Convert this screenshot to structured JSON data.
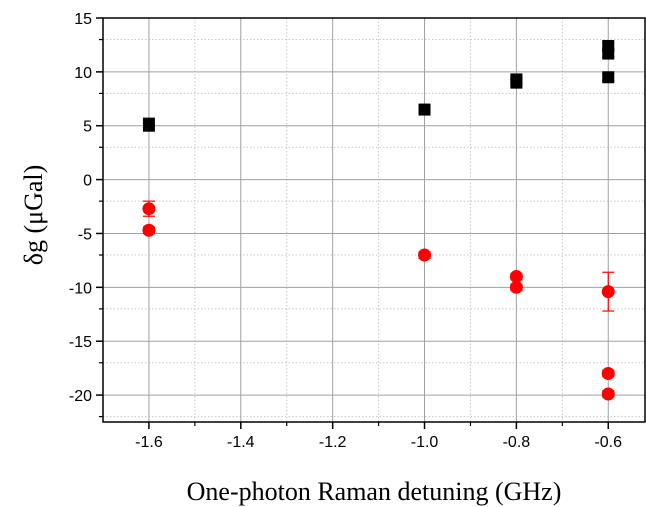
{
  "chart_data": {
    "type": "scatter",
    "xlabel": "One-photon Raman detuning (GHz)",
    "ylabel": "δg (μGal)",
    "xlim": [
      -1.7,
      -0.52
    ],
    "ylim": [
      -22.5,
      15
    ],
    "x_ticks": [
      -1.6,
      -1.4,
      -1.2,
      -1.0,
      -0.8,
      -0.6
    ],
    "x_tick_labels": [
      "-1.6",
      "-1.4",
      "-1.2",
      "-1.0",
      "-0.8",
      "-0.6"
    ],
    "y_ticks": [
      -20,
      -15,
      -10,
      -5,
      0,
      5,
      10,
      15
    ],
    "y_tick_labels": [
      "-20",
      "-15",
      "-10",
      "-5",
      "0",
      "5",
      "10",
      "15"
    ],
    "grid": true,
    "series": [
      {
        "marker": "square",
        "color": "#000000",
        "points": [
          {
            "x": -1.6,
            "y": 5.1,
            "err": 0.6
          },
          {
            "x": -1.0,
            "y": 6.5,
            "err": 0.3
          },
          {
            "x": -0.8,
            "y": 9.3,
            "err": 0.3
          },
          {
            "x": -0.8,
            "y": 9.0,
            "err": 0.3
          },
          {
            "x": -0.6,
            "y": 12.4,
            "err": 0.3
          },
          {
            "x": -0.6,
            "y": 11.7,
            "err": 0.3
          },
          {
            "x": -0.6,
            "y": 9.5,
            "err": 0.3
          }
        ]
      },
      {
        "marker": "circle",
        "color": "#ff0000",
        "points": [
          {
            "x": -1.6,
            "y": -2.7,
            "err": 0.7
          },
          {
            "x": -1.6,
            "y": -4.7,
            "err": 0.3
          },
          {
            "x": -1.0,
            "y": -7.0,
            "err": 0.3
          },
          {
            "x": -0.8,
            "y": -9.0,
            "err": 0.3
          },
          {
            "x": -0.8,
            "y": -10.0,
            "err": 0.3
          },
          {
            "x": -0.6,
            "y": -10.4,
            "err": 1.8
          },
          {
            "x": -0.6,
            "y": -18.0,
            "err": 0.3
          },
          {
            "x": -0.6,
            "y": -19.9,
            "err": 0.3
          }
        ]
      }
    ]
  }
}
